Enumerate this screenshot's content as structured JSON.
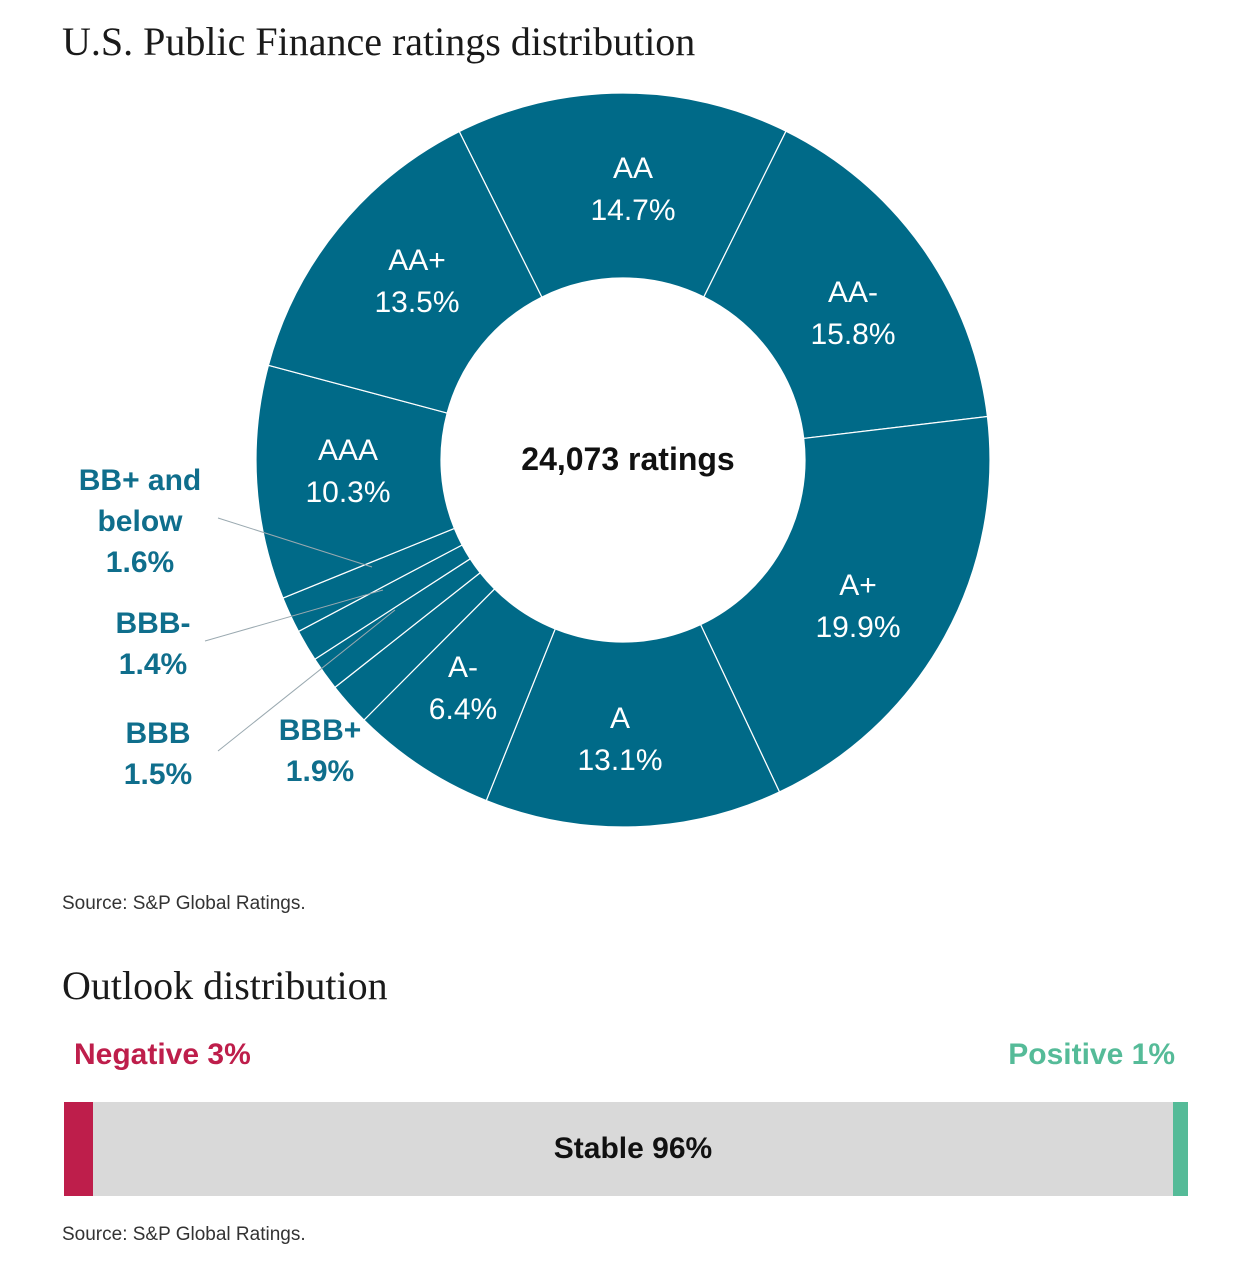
{
  "title": "U.S. Public Finance ratings distribution",
  "source_1": "Source: S&P Global Ratings.",
  "outlook_title": "Outlook distribution",
  "source_2": "Source: S&P Global Ratings.",
  "colors": {
    "donut": "#006a88",
    "outside_label": "#0f6e8c",
    "negative": "#be1e4b",
    "stable": "#d9d9d9",
    "positive": "#55bb98"
  },
  "chart_data": [
    {
      "type": "pie",
      "style": "donut",
      "center_label": "24,073 ratings",
      "slices": [
        {
          "label": "AA",
          "value_label": "14.7%",
          "value": 14.7,
          "label_position": "inside"
        },
        {
          "label": "AA-",
          "value_label": "15.8%",
          "value": 15.8,
          "label_position": "inside"
        },
        {
          "label": "A+",
          "value_label": "19.9%",
          "value": 19.9,
          "label_position": "inside"
        },
        {
          "label": "A",
          "value_label": "13.1%",
          "value": 13.1,
          "label_position": "inside"
        },
        {
          "label": "A-",
          "value_label": "6.4%",
          "value": 6.4,
          "label_position": "inside"
        },
        {
          "label": "BBB+",
          "value_label": "1.9%",
          "value": 1.9,
          "label_position": "outside"
        },
        {
          "label": "BBB",
          "value_label": "1.5%",
          "value": 1.5,
          "label_position": "outside"
        },
        {
          "label": "BBB-",
          "value_label": "1.4%",
          "value": 1.4,
          "label_position": "outside"
        },
        {
          "label": "BB+ and below",
          "value_label": "1.6%",
          "value": 1.6,
          "label_position": "outside"
        },
        {
          "label": "AAA",
          "value_label": "10.3%",
          "value": 10.3,
          "label_position": "inside"
        },
        {
          "label": "AA+",
          "value_label": "13.5%",
          "value": 13.5,
          "label_position": "inside"
        }
      ]
    },
    {
      "type": "bar",
      "orientation": "horizontal-stacked-100",
      "categories": [
        "Negative",
        "Stable",
        "Positive"
      ],
      "values": [
        3,
        96,
        1
      ],
      "labels": [
        "Negative 3%",
        "Stable 96%",
        "Positive 1%"
      ]
    }
  ]
}
